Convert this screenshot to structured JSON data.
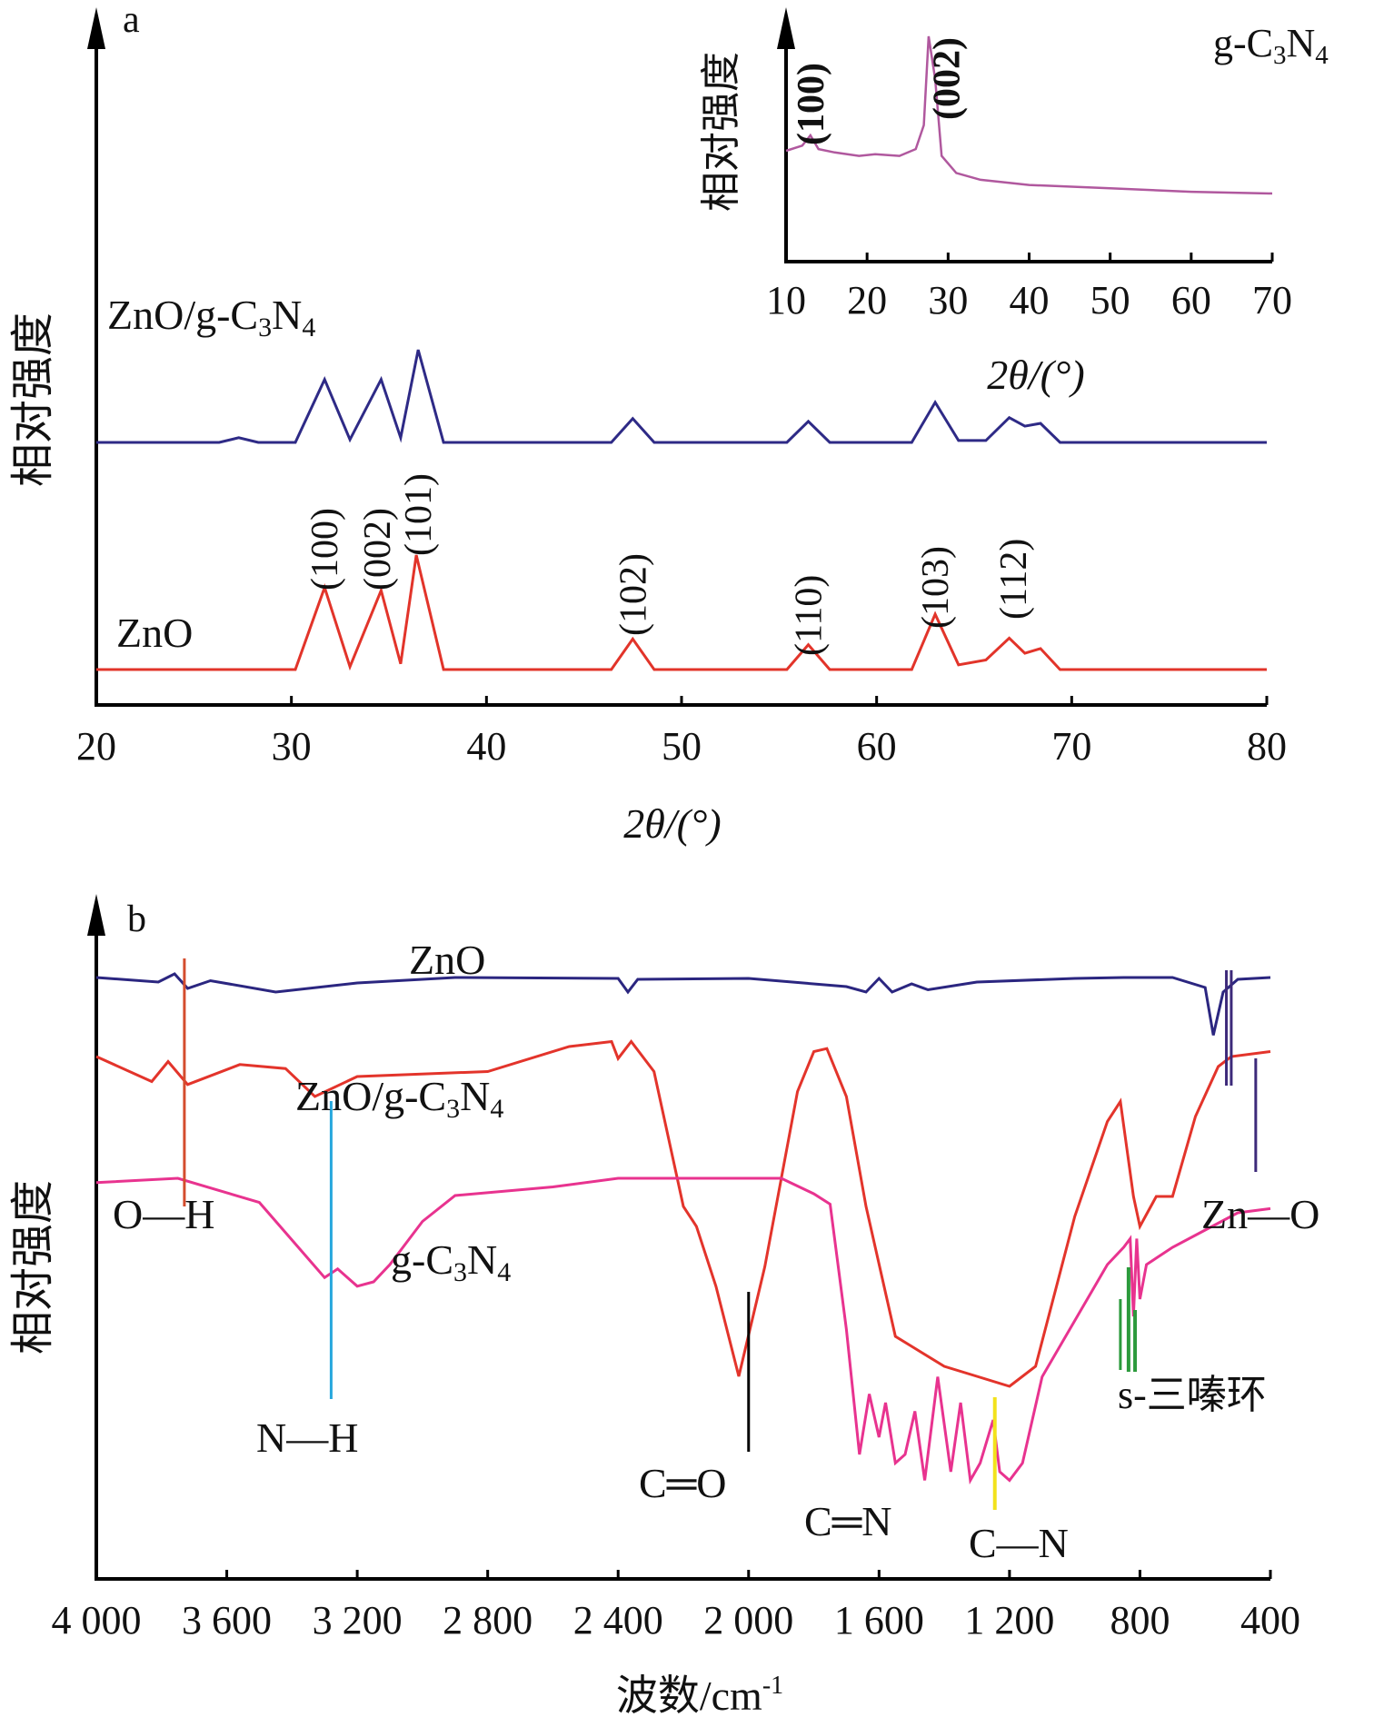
{
  "colors": {
    "axis": "#000000",
    "zno": "#e2342a",
    "zno_gcn": "#2e2a86",
    "gcn_inset": "#b0589e",
    "gcn": "#e8338f",
    "ftir_zno": "#2b2680",
    "ftir_comp": "#e3342b",
    "oh": "#d44d2e",
    "nh": "#27a7dd",
    "co": "#000000",
    "cn": "#f2e21c",
    "triazine": "#2c9a3c",
    "zno_bond": "#3d2a7a"
  },
  "chart_data": [
    {
      "type": "line",
      "panel_letter": "a",
      "ylabel": "相对强度",
      "xlabel": "2θ/(°)",
      "xlim": [
        20,
        80
      ],
      "x_ticks": [
        "20",
        "30",
        "40",
        "50",
        "60",
        "70",
        "80"
      ],
      "grid": false,
      "series": [
        {
          "name": "ZnO/g-C3N4",
          "x": [
            20,
            26.3,
            27.3,
            28.3,
            30.2,
            31.7,
            33.0,
            34.6,
            35.6,
            36.5,
            37.8,
            46.4,
            47.5,
            48.6,
            55.4,
            56.5,
            57.6,
            61.8,
            63.0,
            64.2,
            65.6,
            66.8,
            67.6,
            68.4,
            69.4,
            80
          ],
          "y": [
            0,
            0,
            0.05,
            0,
            0,
            0.66,
            0.03,
            0.66,
            0.05,
            0.97,
            0,
            0,
            0.25,
            0,
            0,
            0.22,
            0,
            0,
            0.42,
            0.02,
            0.02,
            0.26,
            0.17,
            0.2,
            0,
            0
          ]
        },
        {
          "name": "ZnO",
          "x": [
            20,
            30.2,
            31.7,
            33.0,
            34.6,
            35.6,
            36.4,
            37.8,
            46.4,
            47.5,
            48.6,
            55.4,
            56.5,
            57.6,
            61.8,
            63.0,
            64.2,
            65.6,
            66.8,
            67.6,
            68.4,
            69.4,
            80
          ],
          "y": [
            0,
            0,
            0.86,
            0.03,
            0.83,
            0.06,
            1.2,
            0,
            0,
            0.32,
            0,
            0,
            0.26,
            0,
            0,
            0.58,
            0.05,
            0.1,
            0.33,
            0.17,
            0.22,
            0,
            0
          ]
        }
      ],
      "series_labels": [
        "ZnO/g-C3N4",
        "ZnO"
      ],
      "peak_labels": [
        {
          "hkl": "(100)",
          "x": 31.7
        },
        {
          "hkl": "(002)",
          "x": 34.4
        },
        {
          "hkl": "(101)",
          "x": 36.5
        },
        {
          "hkl": "(102)",
          "x": 47.5
        },
        {
          "hkl": "(110)",
          "x": 56.5
        },
        {
          "hkl": "(103)",
          "x": 63.0
        },
        {
          "hkl": "(112)",
          "x": 67.0
        }
      ],
      "inset": {
        "type": "line",
        "title": "g-C3N4",
        "ylabel": "相对强度",
        "xlabel": "2θ/(°)",
        "xlim": [
          10,
          70
        ],
        "x_ticks": [
          "10",
          "20",
          "30",
          "40",
          "50",
          "60",
          "70"
        ],
        "series": [
          {
            "name": "g-C3N4",
            "x": [
              10,
              12.0,
              13.0,
              14.0,
              16.0,
              19.0,
              21.0,
              24.0,
              26.0,
              27.0,
              27.6,
              28.4,
              29.2,
              31.0,
              34.0,
              40.0,
              50.0,
              60.0,
              70.0
            ],
            "y": [
              0.33,
              0.36,
              0.42,
              0.34,
              0.32,
              0.3,
              0.31,
              0.3,
              0.34,
              0.48,
              1.0,
              0.75,
              0.3,
              0.2,
              0.16,
              0.13,
              0.11,
              0.09,
              0.08
            ]
          }
        ],
        "peak_labels": [
          {
            "hkl": "(100)",
            "x": 13.0
          },
          {
            "hkl": "(002)",
            "x": 29.8
          }
        ]
      }
    },
    {
      "type": "line",
      "panel_letter": "b",
      "ylabel": "相对强度",
      "xlabel": "波数/cm-1",
      "xlim": [
        4000,
        400
      ],
      "x_ticks": [
        "4 000",
        "3 600",
        "3 200",
        "2 800",
        "2 400",
        "2 000",
        "1 600",
        "1 200",
        "800",
        "400"
      ],
      "grid": false,
      "series": [
        {
          "name": "ZnO",
          "x": [
            4000,
            3810,
            3760,
            3720,
            3650,
            3450,
            3200,
            2900,
            2400,
            2370,
            2340,
            2000,
            1700,
            1640,
            1600,
            1560,
            1500,
            1450,
            1300,
            1000,
            850,
            700,
            600,
            575,
            545,
            500,
            400
          ],
          "y": [
            0.32,
            0.22,
            0.4,
            0.08,
            0.25,
            0.0,
            0.2,
            0.32,
            0.3,
            0.0,
            0.28,
            0.3,
            0.12,
            0.0,
            0.3,
            0.0,
            0.18,
            0.05,
            0.22,
            0.3,
            0.32,
            0.32,
            0.1,
            -0.95,
            0.0,
            0.28,
            0.32
          ]
        },
        {
          "name": "ZnO/g-C3N4",
          "x": [
            4000,
            3830,
            3780,
            3720,
            3560,
            3420,
            3330,
            3200,
            2800,
            2550,
            2420,
            2400,
            2360,
            2290,
            2200,
            2160,
            2100,
            2030,
            1950,
            1850,
            1800,
            1760,
            1700,
            1640,
            1550,
            1500,
            1400,
            1300,
            1200,
            1120,
            1000,
            900,
            860,
            820,
            800,
            750,
            700,
            630,
            560,
            520,
            400
          ],
          "y": [
            0.9,
            0.65,
            0.85,
            0.62,
            0.82,
            0.78,
            0.5,
            0.7,
            0.75,
            1.0,
            1.05,
            0.88,
            1.05,
            0.75,
            -0.6,
            -0.8,
            -1.4,
            -2.3,
            -1.2,
            0.55,
            0.95,
            0.98,
            0.5,
            -0.6,
            -1.9,
            -2.0,
            -2.2,
            -2.3,
            -2.4,
            -2.2,
            -0.7,
            0.25,
            0.45,
            -0.5,
            -0.8,
            -0.5,
            -0.5,
            0.3,
            0.8,
            0.9,
            0.95
          ]
        },
        {
          "name": "g-C3N4",
          "x": [
            4000,
            3750,
            3500,
            3300,
            3260,
            3200,
            3150,
            3100,
            3000,
            2900,
            2600,
            2400,
            1900,
            1800,
            1750,
            1700,
            1660,
            1630,
            1600,
            1580,
            1550,
            1520,
            1490,
            1460,
            1420,
            1380,
            1350,
            1320,
            1290,
            1250,
            1230,
            1200,
            1160,
            1100,
            900,
            850,
            830,
            820,
            810,
            800,
            780,
            700,
            600,
            500,
            400
          ],
          "y": [
            0.95,
            1.0,
            0.72,
            -0.15,
            -0.05,
            -0.25,
            -0.2,
            0.0,
            0.5,
            0.8,
            0.9,
            1.0,
            1.0,
            0.82,
            0.7,
            -0.75,
            -2.2,
            -1.5,
            -2.0,
            -1.6,
            -2.3,
            -2.2,
            -1.7,
            -2.5,
            -1.3,
            -2.4,
            -1.6,
            -2.5,
            -2.3,
            -1.8,
            -2.4,
            -2.5,
            -2.3,
            -1.3,
            0.0,
            0.2,
            0.3,
            -0.6,
            0.3,
            -0.4,
            0.0,
            0.2,
            0.4,
            0.6,
            0.65
          ]
        }
      ],
      "series_labels": [
        "ZnO",
        "ZnO/g-C3N4",
        "g-C3N4"
      ],
      "annotations": [
        {
          "text": "O—H",
          "x": 3730
        },
        {
          "text": "N—H",
          "x": 3270
        },
        {
          "text": "C═O",
          "x": 2000
        },
        {
          "text": "C═N",
          "x": 1620
        },
        {
          "text": "C—N",
          "x": 1240
        },
        {
          "text": "s-三嗪环",
          "x": 810
        },
        {
          "text": "Zn—O",
          "x": 490
        }
      ]
    }
  ]
}
